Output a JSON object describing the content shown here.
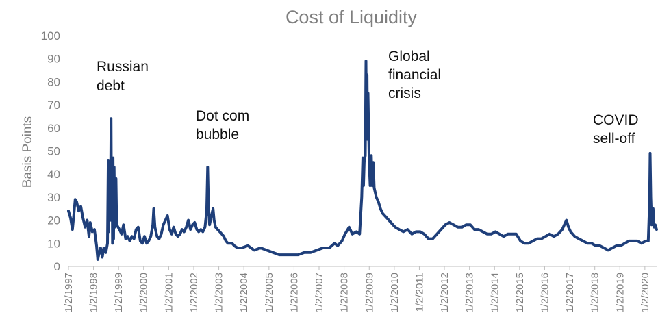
{
  "chart_data": {
    "type": "line",
    "title": "Cost of Liquidity",
    "xlabel": "",
    "ylabel": "Basis Points",
    "ylim": [
      0,
      100
    ],
    "yticks": [
      0,
      10,
      20,
      30,
      40,
      50,
      60,
      70,
      80,
      90,
      100
    ],
    "xticks": [
      "1/2/1997",
      "1/2/1998",
      "1/2/1999",
      "1/2/2000",
      "1/2/2001",
      "1/2/2002",
      "1/2/2003",
      "1/2/2004",
      "1/2/2005",
      "1/2/2006",
      "1/2/2007",
      "1/2/2008",
      "1/2/2009",
      "1/2/2010",
      "1/2/2011",
      "1/2/2012",
      "1/2/2013",
      "1/2/2014",
      "1/2/2015",
      "1/2/2016",
      "1/2/2017",
      "1/2/2018",
      "1/2/2019",
      "1/2/2020"
    ],
    "xlim": [
      "1997-01-02",
      "2020-07-01"
    ],
    "grid": false,
    "line_color": "#1f3f7a",
    "series": [
      {
        "points": [
          [
            "1997-01-02",
            24
          ],
          [
            "1997-02-01",
            21
          ],
          [
            "1997-03-01",
            16
          ],
          [
            "1997-03-20",
            22
          ],
          [
            "1997-04-10",
            29
          ],
          [
            "1997-05-01",
            28
          ],
          [
            "1997-06-01",
            24
          ],
          [
            "1997-07-01",
            26
          ],
          [
            "1997-08-01",
            21
          ],
          [
            "1997-09-01",
            17
          ],
          [
            "1997-10-01",
            20
          ],
          [
            "1997-10-28",
            13
          ],
          [
            "1997-11-15",
            19
          ],
          [
            "1997-12-15",
            15
          ],
          [
            "1998-01-15",
            16
          ],
          [
            "1998-02-15",
            9
          ],
          [
            "1998-03-05",
            3
          ],
          [
            "1998-03-25",
            6
          ],
          [
            "1998-04-15",
            8
          ],
          [
            "1998-05-10",
            4
          ],
          [
            "1998-06-01",
            8
          ],
          [
            "1998-07-01",
            6
          ],
          [
            "1998-07-25",
            10
          ],
          [
            "1998-08-05",
            46
          ],
          [
            "1998-08-12",
            15
          ],
          [
            "1998-08-22",
            40
          ],
          [
            "1998-09-05",
            20
          ],
          [
            "1998-09-15",
            64
          ],
          [
            "1998-09-22",
            20
          ],
          [
            "1998-10-01",
            45
          ],
          [
            "1998-10-06",
            10
          ],
          [
            "1998-10-14",
            47
          ],
          [
            "1998-10-22",
            12
          ],
          [
            "1998-10-30",
            43
          ],
          [
            "1998-11-08",
            17
          ],
          [
            "1998-11-25",
            38
          ],
          [
            "1998-12-05",
            18
          ],
          [
            "1999-01-15",
            16
          ],
          [
            "1999-02-15",
            14
          ],
          [
            "1999-03-15",
            18
          ],
          [
            "1999-04-15",
            12
          ],
          [
            "1999-05-15",
            13
          ],
          [
            "1999-06-15",
            11
          ],
          [
            "1999-07-15",
            13
          ],
          [
            "1999-08-15",
            12
          ],
          [
            "1999-09-15",
            16
          ],
          [
            "1999-10-15",
            17
          ],
          [
            "1999-11-15",
            11
          ],
          [
            "1999-12-15",
            10
          ],
          [
            "2000-01-15",
            13
          ],
          [
            "2000-02-15",
            10
          ],
          [
            "2000-03-15",
            11
          ],
          [
            "2000-04-15",
            13
          ],
          [
            "2000-05-15",
            18
          ],
          [
            "2000-05-28",
            25
          ],
          [
            "2000-06-15",
            17
          ],
          [
            "2000-07-15",
            13
          ],
          [
            "2000-08-15",
            12
          ],
          [
            "2000-09-15",
            14
          ],
          [
            "2000-10-15",
            18
          ],
          [
            "2000-11-15",
            20
          ],
          [
            "2000-12-15",
            22
          ],
          [
            "2001-01-15",
            16
          ],
          [
            "2001-02-15",
            14
          ],
          [
            "2001-03-15",
            17
          ],
          [
            "2001-04-15",
            14
          ],
          [
            "2001-05-15",
            13
          ],
          [
            "2001-06-15",
            14
          ],
          [
            "2001-07-15",
            16
          ],
          [
            "2001-08-15",
            15
          ],
          [
            "2001-09-15",
            17
          ],
          [
            "2001-10-15",
            20
          ],
          [
            "2001-11-15",
            16
          ],
          [
            "2001-12-15",
            18
          ],
          [
            "2002-01-15",
            19
          ],
          [
            "2002-02-15",
            16
          ],
          [
            "2002-03-15",
            15
          ],
          [
            "2002-04-15",
            16
          ],
          [
            "2002-05-15",
            15
          ],
          [
            "2002-06-15",
            17
          ],
          [
            "2002-07-10",
            24
          ],
          [
            "2002-07-24",
            43
          ],
          [
            "2002-08-05",
            25
          ],
          [
            "2002-08-20",
            18
          ],
          [
            "2002-09-15",
            22
          ],
          [
            "2002-10-10",
            25
          ],
          [
            "2002-10-25",
            20
          ],
          [
            "2002-11-15",
            17
          ],
          [
            "2002-12-15",
            16
          ],
          [
            "2003-01-15",
            15
          ],
          [
            "2003-02-15",
            14
          ],
          [
            "2003-03-15",
            13
          ],
          [
            "2003-04-15",
            11
          ],
          [
            "2003-05-15",
            10
          ],
          [
            "2003-06-15",
            10
          ],
          [
            "2003-07-15",
            10
          ],
          [
            "2003-08-15",
            9
          ],
          [
            "2003-10-01",
            8
          ],
          [
            "2003-12-01",
            8
          ],
          [
            "2004-03-01",
            9
          ],
          [
            "2004-06-01",
            7
          ],
          [
            "2004-09-01",
            8
          ],
          [
            "2004-12-01",
            7
          ],
          [
            "2005-03-01",
            6
          ],
          [
            "2005-06-01",
            5
          ],
          [
            "2005-09-01",
            5
          ],
          [
            "2005-12-01",
            5
          ],
          [
            "2006-03-01",
            5
          ],
          [
            "2006-06-01",
            6
          ],
          [
            "2006-09-01",
            6
          ],
          [
            "2006-12-01",
            7
          ],
          [
            "2007-03-01",
            8
          ],
          [
            "2007-06-01",
            8
          ],
          [
            "2007-08-15",
            10
          ],
          [
            "2007-10-01",
            9
          ],
          [
            "2007-12-01",
            11
          ],
          [
            "2008-01-15",
            14
          ],
          [
            "2008-03-15",
            17
          ],
          [
            "2008-05-01",
            14
          ],
          [
            "2008-07-01",
            15
          ],
          [
            "2008-08-15",
            14
          ],
          [
            "2008-09-15",
            30
          ],
          [
            "2008-10-01",
            47
          ],
          [
            "2008-10-10",
            35
          ],
          [
            "2008-10-20",
            45
          ],
          [
            "2008-11-05",
            48
          ],
          [
            "2008-11-15",
            89
          ],
          [
            "2008-11-22",
            60
          ],
          [
            "2008-12-01",
            83
          ],
          [
            "2008-12-08",
            55
          ],
          [
            "2008-12-15",
            75
          ],
          [
            "2009-01-01",
            45
          ],
          [
            "2009-01-15",
            35
          ],
          [
            "2009-02-01",
            48
          ],
          [
            "2009-02-15",
            35
          ],
          [
            "2009-03-01",
            45
          ],
          [
            "2009-03-15",
            34
          ],
          [
            "2009-04-15",
            30
          ],
          [
            "2009-05-15",
            28
          ],
          [
            "2009-06-15",
            25
          ],
          [
            "2009-07-15",
            23
          ],
          [
            "2009-08-15",
            22
          ],
          [
            "2009-09-15",
            21
          ],
          [
            "2009-10-15",
            20
          ],
          [
            "2009-11-15",
            19
          ],
          [
            "2009-12-15",
            18
          ],
          [
            "2010-01-15",
            17
          ],
          [
            "2010-03-15",
            16
          ],
          [
            "2010-05-15",
            15
          ],
          [
            "2010-07-15",
            16
          ],
          [
            "2010-09-15",
            14
          ],
          [
            "2010-11-15",
            15
          ],
          [
            "2011-01-15",
            15
          ],
          [
            "2011-03-15",
            14
          ],
          [
            "2011-05-15",
            12
          ],
          [
            "2011-07-15",
            12
          ],
          [
            "2011-09-15",
            14
          ],
          [
            "2011-11-15",
            16
          ],
          [
            "2012-01-15",
            18
          ],
          [
            "2012-03-15",
            19
          ],
          [
            "2012-05-15",
            18
          ],
          [
            "2012-07-15",
            17
          ],
          [
            "2012-09-15",
            17
          ],
          [
            "2012-11-15",
            18
          ],
          [
            "2013-01-15",
            18
          ],
          [
            "2013-03-15",
            16
          ],
          [
            "2013-05-15",
            16
          ],
          [
            "2013-07-15",
            15
          ],
          [
            "2013-09-15",
            14
          ],
          [
            "2013-11-15",
            14
          ],
          [
            "2014-01-15",
            15
          ],
          [
            "2014-03-15",
            14
          ],
          [
            "2014-05-15",
            13
          ],
          [
            "2014-07-15",
            14
          ],
          [
            "2014-09-15",
            14
          ],
          [
            "2014-11-15",
            14
          ],
          [
            "2015-01-15",
            11
          ],
          [
            "2015-03-15",
            10
          ],
          [
            "2015-05-15",
            10
          ],
          [
            "2015-07-15",
            11
          ],
          [
            "2015-09-15",
            12
          ],
          [
            "2015-11-15",
            12
          ],
          [
            "2016-01-15",
            13
          ],
          [
            "2016-03-15",
            14
          ],
          [
            "2016-05-15",
            13
          ],
          [
            "2016-07-15",
            14
          ],
          [
            "2016-09-15",
            16
          ],
          [
            "2016-10-15",
            18
          ],
          [
            "2016-11-15",
            20
          ],
          [
            "2016-12-15",
            17
          ],
          [
            "2017-01-15",
            15
          ],
          [
            "2017-03-15",
            13
          ],
          [
            "2017-05-15",
            12
          ],
          [
            "2017-07-15",
            11
          ],
          [
            "2017-09-15",
            10
          ],
          [
            "2017-11-15",
            10
          ],
          [
            "2018-01-15",
            9
          ],
          [
            "2018-03-15",
            9
          ],
          [
            "2018-05-15",
            8
          ],
          [
            "2018-07-15",
            7
          ],
          [
            "2018-09-15",
            8
          ],
          [
            "2018-11-15",
            9
          ],
          [
            "2019-01-15",
            9
          ],
          [
            "2019-03-15",
            10
          ],
          [
            "2019-05-15",
            11
          ],
          [
            "2019-07-15",
            11
          ],
          [
            "2019-09-15",
            11
          ],
          [
            "2019-11-15",
            10
          ],
          [
            "2020-01-15",
            11
          ],
          [
            "2020-02-20",
            11
          ],
          [
            "2020-03-10",
            28
          ],
          [
            "2020-03-18",
            49
          ],
          [
            "2020-03-28",
            30
          ],
          [
            "2020-04-10",
            18
          ],
          [
            "2020-05-01",
            25
          ],
          [
            "2020-05-15",
            17
          ],
          [
            "2020-06-01",
            18
          ],
          [
            "2020-06-20",
            16
          ]
        ]
      }
    ],
    "annotations": [
      {
        "lines": [
          "Russian",
          "debt"
        ]
      },
      {
        "lines": [
          "Dot com",
          "bubble"
        ]
      },
      {
        "lines": [
          "Global",
          "financial",
          "crisis"
        ]
      },
      {
        "lines": [
          "COVID",
          "sell-off"
        ]
      }
    ]
  }
}
